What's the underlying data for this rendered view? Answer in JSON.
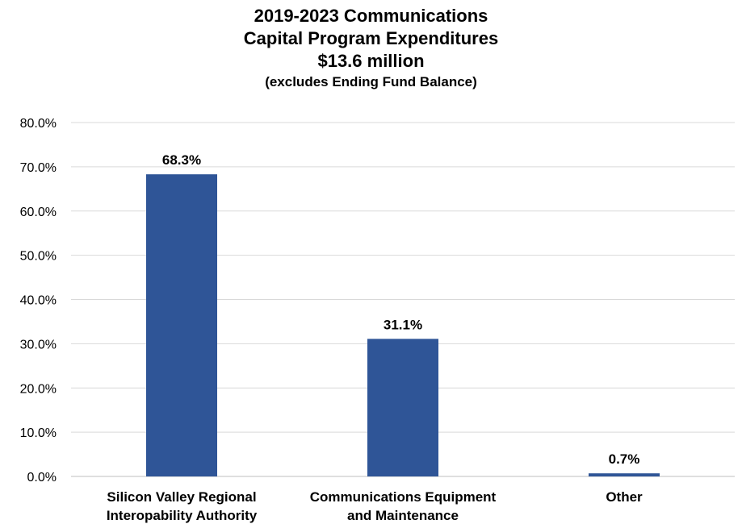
{
  "chart_data": {
    "type": "bar",
    "title_lines": [
      "2019-2023 Communications",
      "Capital Program Expenditures",
      "$13.6 million"
    ],
    "subtitle": "(excludes Ending Fund Balance)",
    "categories": [
      [
        "Silicon Valley Regional",
        "Interopability Authority"
      ],
      [
        "Communications Equipment",
        "and Maintenance"
      ],
      [
        "Other"
      ]
    ],
    "values": [
      68.3,
      31.1,
      0.7
    ],
    "data_labels": [
      "68.3%",
      "31.1%",
      "0.7%"
    ],
    "ylim": [
      0,
      80
    ],
    "yticks": [
      0,
      10,
      20,
      30,
      40,
      50,
      60,
      70,
      80
    ],
    "ytick_labels": [
      "0.0%",
      "10.0%",
      "20.0%",
      "30.0%",
      "40.0%",
      "50.0%",
      "60.0%",
      "70.0%",
      "80.0%"
    ],
    "grid": true,
    "bar_color": "#2f5597",
    "grid_color": "#d9d9d9"
  }
}
